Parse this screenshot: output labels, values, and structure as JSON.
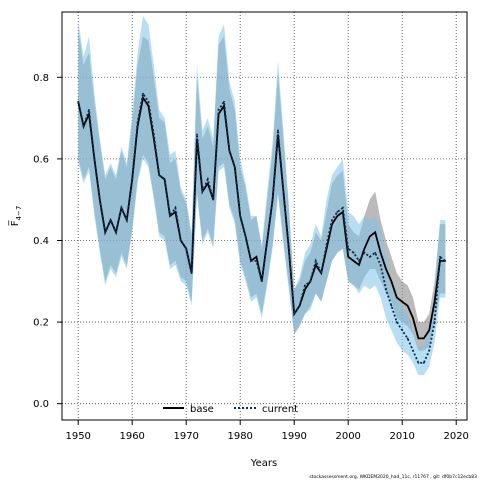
{
  "chart_data": {
    "type": "line",
    "xlabel": "Years",
    "ylabel": "F̅",
    "ylabel_sub": "4−7",
    "xlim": [
      1947,
      2022
    ],
    "ylim": [
      -0.04,
      0.96
    ],
    "x_ticks": [
      1950,
      1960,
      1970,
      1980,
      1990,
      2000,
      2010,
      2020
    ],
    "y_ticks": [
      0.0,
      0.2,
      0.4,
      0.6,
      0.8
    ],
    "grid": true,
    "legend_position": "bottom-center",
    "footer": "stockassessment.org, WKDEM2020_had_11c, r11767 , git: df0b7c12ecb83",
    "colors": {
      "base": "#000000",
      "base_band": "#8c8c8c",
      "current": "#0a2d4f",
      "current_band": "#7ec3ea"
    },
    "series": [
      {
        "name": "base",
        "line_style": "solid",
        "x": [
          1950,
          1951,
          1952,
          1953,
          1954,
          1955,
          1956,
          1957,
          1958,
          1959,
          1960,
          1961,
          1962,
          1963,
          1964,
          1965,
          1966,
          1967,
          1968,
          1969,
          1970,
          1971,
          1972,
          1973,
          1974,
          1975,
          1976,
          1977,
          1978,
          1979,
          1980,
          1981,
          1982,
          1983,
          1984,
          1985,
          1986,
          1987,
          1988,
          1989,
          1990,
          1991,
          1992,
          1993,
          1994,
          1995,
          1996,
          1997,
          1998,
          1999,
          2000,
          2001,
          2002,
          2003,
          2004,
          2005,
          2006,
          2007,
          2008,
          2009,
          2010,
          2011,
          2012,
          2013,
          2014,
          2015,
          2016,
          2017,
          2018
        ],
        "y": [
          0.74,
          0.68,
          0.71,
          0.6,
          0.5,
          0.42,
          0.45,
          0.42,
          0.48,
          0.45,
          0.55,
          0.68,
          0.75,
          0.73,
          0.65,
          0.56,
          0.55,
          0.46,
          0.47,
          0.4,
          0.38,
          0.32,
          0.65,
          0.52,
          0.54,
          0.5,
          0.71,
          0.73,
          0.62,
          0.58,
          0.46,
          0.41,
          0.35,
          0.36,
          0.3,
          0.4,
          0.5,
          0.66,
          0.52,
          0.38,
          0.22,
          0.24,
          0.28,
          0.3,
          0.34,
          0.32,
          0.38,
          0.44,
          0.46,
          0.47,
          0.36,
          0.35,
          0.34,
          0.38,
          0.41,
          0.42,
          0.37,
          0.33,
          0.3,
          0.26,
          0.25,
          0.24,
          0.21,
          0.16,
          0.16,
          0.18,
          0.25,
          0.35,
          0.35
        ],
        "lower": [
          0.6,
          0.55,
          0.58,
          0.47,
          0.38,
          0.3,
          0.34,
          0.32,
          0.37,
          0.34,
          0.43,
          0.55,
          0.61,
          0.59,
          0.51,
          0.42,
          0.41,
          0.34,
          0.35,
          0.31,
          0.3,
          0.25,
          0.52,
          0.4,
          0.43,
          0.39,
          0.58,
          0.59,
          0.49,
          0.45,
          0.35,
          0.31,
          0.26,
          0.27,
          0.22,
          0.3,
          0.39,
          0.52,
          0.4,
          0.29,
          0.17,
          0.19,
          0.22,
          0.24,
          0.27,
          0.25,
          0.3,
          0.35,
          0.37,
          0.38,
          0.3,
          0.29,
          0.28,
          0.31,
          0.33,
          0.33,
          0.3,
          0.27,
          0.25,
          0.21,
          0.2,
          0.19,
          0.17,
          0.13,
          0.13,
          0.14,
          0.2,
          0.27,
          0.27
        ],
        "upper": [
          0.92,
          0.83,
          0.86,
          0.74,
          0.64,
          0.55,
          0.58,
          0.55,
          0.62,
          0.58,
          0.69,
          0.83,
          0.9,
          0.89,
          0.8,
          0.7,
          0.69,
          0.59,
          0.6,
          0.52,
          0.49,
          0.41,
          0.8,
          0.65,
          0.68,
          0.63,
          0.88,
          0.9,
          0.77,
          0.72,
          0.58,
          0.53,
          0.45,
          0.46,
          0.38,
          0.5,
          0.62,
          0.81,
          0.65,
          0.48,
          0.28,
          0.3,
          0.35,
          0.37,
          0.42,
          0.4,
          0.47,
          0.54,
          0.56,
          0.57,
          0.44,
          0.42,
          0.41,
          0.46,
          0.5,
          0.52,
          0.45,
          0.4,
          0.36,
          0.32,
          0.3,
          0.29,
          0.26,
          0.2,
          0.2,
          0.22,
          0.3,
          0.44,
          0.44
        ]
      },
      {
        "name": "current",
        "line_style": "dotted",
        "x": [
          1950,
          1951,
          1952,
          1953,
          1954,
          1955,
          1956,
          1957,
          1958,
          1959,
          1960,
          1961,
          1962,
          1963,
          1964,
          1965,
          1966,
          1967,
          1968,
          1969,
          1970,
          1971,
          1972,
          1973,
          1974,
          1975,
          1976,
          1977,
          1978,
          1979,
          1980,
          1981,
          1982,
          1983,
          1984,
          1985,
          1986,
          1987,
          1988,
          1989,
          1990,
          1991,
          1992,
          1993,
          1994,
          1995,
          1996,
          1997,
          1998,
          1999,
          2000,
          2001,
          2002,
          2003,
          2004,
          2005,
          2006,
          2007,
          2008,
          2009,
          2010,
          2011,
          2012,
          2013,
          2014,
          2015,
          2016,
          2017,
          2018
        ],
        "y": [
          0.74,
          0.68,
          0.72,
          0.6,
          0.5,
          0.42,
          0.45,
          0.42,
          0.48,
          0.45,
          0.55,
          0.69,
          0.76,
          0.74,
          0.66,
          0.56,
          0.55,
          0.46,
          0.48,
          0.4,
          0.38,
          0.32,
          0.66,
          0.52,
          0.55,
          0.5,
          0.72,
          0.74,
          0.62,
          0.58,
          0.46,
          0.41,
          0.35,
          0.35,
          0.3,
          0.4,
          0.5,
          0.67,
          0.52,
          0.38,
          0.22,
          0.24,
          0.29,
          0.3,
          0.35,
          0.32,
          0.39,
          0.45,
          0.47,
          0.48,
          0.38,
          0.37,
          0.35,
          0.37,
          0.36,
          0.37,
          0.34,
          0.28,
          0.24,
          0.2,
          0.18,
          0.16,
          0.13,
          0.1,
          0.1,
          0.13,
          0.2,
          0.36,
          0.35
        ],
        "lower": [
          0.59,
          0.54,
          0.57,
          0.46,
          0.37,
          0.29,
          0.33,
          0.31,
          0.36,
          0.33,
          0.42,
          0.54,
          0.6,
          0.58,
          0.5,
          0.41,
          0.4,
          0.33,
          0.34,
          0.3,
          0.29,
          0.24,
          0.51,
          0.39,
          0.42,
          0.38,
          0.57,
          0.58,
          0.48,
          0.44,
          0.34,
          0.3,
          0.25,
          0.26,
          0.21,
          0.29,
          0.38,
          0.51,
          0.39,
          0.28,
          0.17,
          0.19,
          0.22,
          0.23,
          0.27,
          0.25,
          0.3,
          0.35,
          0.37,
          0.38,
          0.3,
          0.29,
          0.27,
          0.29,
          0.28,
          0.29,
          0.26,
          0.21,
          0.18,
          0.15,
          0.13,
          0.12,
          0.1,
          0.07,
          0.07,
          0.09,
          0.15,
          0.26,
          0.26
        ],
        "upper": [
          0.94,
          0.85,
          0.9,
          0.76,
          0.65,
          0.56,
          0.59,
          0.56,
          0.63,
          0.59,
          0.71,
          0.86,
          0.95,
          0.93,
          0.83,
          0.72,
          0.7,
          0.61,
          0.62,
          0.53,
          0.5,
          0.42,
          0.83,
          0.67,
          0.7,
          0.65,
          0.9,
          0.93,
          0.79,
          0.74,
          0.6,
          0.54,
          0.46,
          0.46,
          0.39,
          0.52,
          0.64,
          0.84,
          0.67,
          0.49,
          0.28,
          0.31,
          0.37,
          0.39,
          0.44,
          0.41,
          0.5,
          0.56,
          0.58,
          0.6,
          0.47,
          0.46,
          0.44,
          0.46,
          0.45,
          0.46,
          0.43,
          0.36,
          0.31,
          0.26,
          0.24,
          0.22,
          0.18,
          0.14,
          0.14,
          0.18,
          0.27,
          0.45,
          0.45
        ]
      }
    ]
  }
}
